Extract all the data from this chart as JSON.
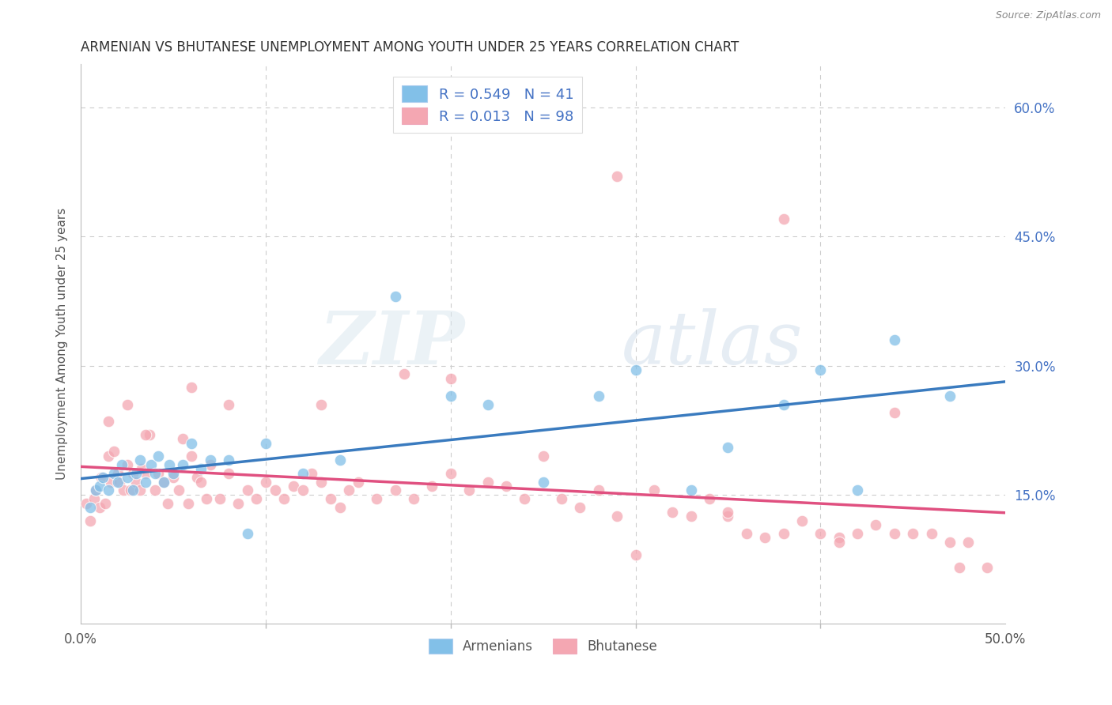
{
  "title": "ARMENIAN VS BHUTANESE UNEMPLOYMENT AMONG YOUTH UNDER 25 YEARS CORRELATION CHART",
  "source": "Source: ZipAtlas.com",
  "ylabel": "Unemployment Among Youth under 25 years",
  "xlim": [
    0.0,
    0.5
  ],
  "ylim": [
    0.0,
    0.65
  ],
  "yticks": [
    0.15,
    0.3,
    0.45,
    0.6
  ],
  "ytick_labels": [
    "15.0%",
    "30.0%",
    "45.0%",
    "60.0%"
  ],
  "xtick_left_label": "0.0%",
  "xtick_right_label": "50.0%",
  "armenian_R": 0.549,
  "armenian_N": 41,
  "bhutanese_R": 0.013,
  "bhutanese_N": 98,
  "armenian_color": "#82c0e8",
  "bhutanese_color": "#f4a7b2",
  "armenian_line_color": "#3a7bbf",
  "bhutanese_line_color": "#e05080",
  "legend_armenians": "Armenians",
  "legend_bhutanese": "Bhutanese",
  "watermark_zip": "ZIP",
  "watermark_atlas": "atlas",
  "background_color": "#ffffff",
  "grid_color": "#cccccc",
  "title_color": "#333333",
  "axis_label_color": "#555555",
  "tick_label_color_right": "#4472c4",
  "legend_text_color": "#4472c4",
  "armenian_x": [
    0.005,
    0.008,
    0.01,
    0.012,
    0.015,
    0.018,
    0.02,
    0.022,
    0.025,
    0.028,
    0.03,
    0.032,
    0.035,
    0.038,
    0.04,
    0.042,
    0.045,
    0.048,
    0.05,
    0.055,
    0.06,
    0.065,
    0.07,
    0.08,
    0.09,
    0.1,
    0.12,
    0.14,
    0.17,
    0.2,
    0.22,
    0.25,
    0.28,
    0.3,
    0.33,
    0.35,
    0.38,
    0.4,
    0.42,
    0.44,
    0.47
  ],
  "armenian_y": [
    0.135,
    0.155,
    0.16,
    0.17,
    0.155,
    0.175,
    0.165,
    0.185,
    0.17,
    0.155,
    0.175,
    0.19,
    0.165,
    0.185,
    0.175,
    0.195,
    0.165,
    0.185,
    0.175,
    0.185,
    0.21,
    0.18,
    0.19,
    0.19,
    0.105,
    0.21,
    0.175,
    0.19,
    0.38,
    0.265,
    0.255,
    0.165,
    0.265,
    0.295,
    0.155,
    0.205,
    0.255,
    0.295,
    0.155,
    0.33,
    0.265
  ],
  "bhutanese_x": [
    0.003,
    0.005,
    0.007,
    0.008,
    0.01,
    0.011,
    0.013,
    0.015,
    0.016,
    0.018,
    0.02,
    0.021,
    0.023,
    0.025,
    0.027,
    0.028,
    0.03,
    0.032,
    0.033,
    0.035,
    0.037,
    0.04,
    0.042,
    0.045,
    0.047,
    0.05,
    0.053,
    0.055,
    0.058,
    0.06,
    0.063,
    0.065,
    0.068,
    0.07,
    0.075,
    0.08,
    0.085,
    0.09,
    0.095,
    0.1,
    0.105,
    0.11,
    0.115,
    0.12,
    0.125,
    0.13,
    0.135,
    0.14,
    0.145,
    0.15,
    0.16,
    0.17,
    0.175,
    0.18,
    0.19,
    0.2,
    0.21,
    0.22,
    0.23,
    0.24,
    0.25,
    0.26,
    0.27,
    0.28,
    0.29,
    0.3,
    0.31,
    0.32,
    0.33,
    0.34,
    0.35,
    0.36,
    0.37,
    0.38,
    0.39,
    0.4,
    0.41,
    0.42,
    0.43,
    0.44,
    0.45,
    0.46,
    0.47,
    0.48,
    0.49,
    0.015,
    0.025,
    0.035,
    0.06,
    0.08,
    0.13,
    0.2,
    0.29,
    0.35,
    0.38,
    0.41,
    0.44,
    0.475
  ],
  "bhutanese_y": [
    0.14,
    0.12,
    0.145,
    0.155,
    0.135,
    0.17,
    0.14,
    0.195,
    0.165,
    0.2,
    0.175,
    0.165,
    0.155,
    0.185,
    0.155,
    0.175,
    0.165,
    0.155,
    0.18,
    0.175,
    0.22,
    0.155,
    0.175,
    0.165,
    0.14,
    0.17,
    0.155,
    0.215,
    0.14,
    0.195,
    0.17,
    0.165,
    0.145,
    0.185,
    0.145,
    0.175,
    0.14,
    0.155,
    0.145,
    0.165,
    0.155,
    0.145,
    0.16,
    0.155,
    0.175,
    0.165,
    0.145,
    0.135,
    0.155,
    0.165,
    0.145,
    0.155,
    0.29,
    0.145,
    0.16,
    0.175,
    0.155,
    0.165,
    0.16,
    0.145,
    0.195,
    0.145,
    0.135,
    0.155,
    0.125,
    0.08,
    0.155,
    0.13,
    0.125,
    0.145,
    0.125,
    0.105,
    0.1,
    0.105,
    0.12,
    0.105,
    0.1,
    0.105,
    0.115,
    0.245,
    0.105,
    0.105,
    0.095,
    0.095,
    0.065,
    0.235,
    0.255,
    0.22,
    0.275,
    0.255,
    0.255,
    0.285,
    0.52,
    0.13,
    0.47,
    0.095,
    0.105,
    0.065
  ]
}
